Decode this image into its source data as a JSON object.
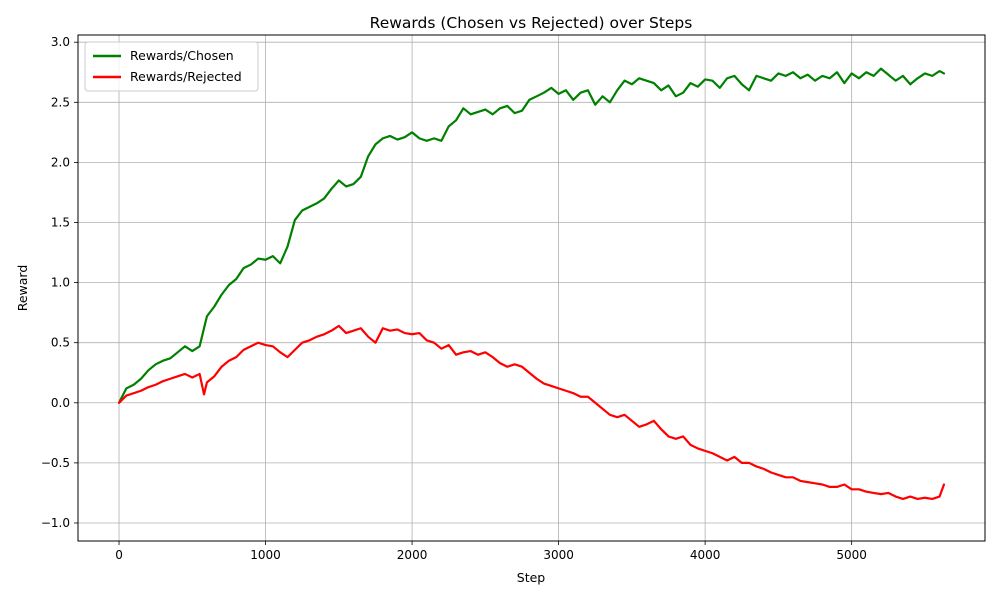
{
  "chart_data": {
    "type": "line",
    "title": "Rewards (Chosen vs Rejected) over Steps",
    "xlabel": "Step",
    "ylabel": "Reward",
    "xlim": [
      -280,
      5910
    ],
    "ylim": [
      -1.15,
      3.06
    ],
    "xticks": [
      0,
      1000,
      2000,
      3000,
      4000,
      5000
    ],
    "yticks": [
      -1.0,
      -0.5,
      0.0,
      0.5,
      1.0,
      1.5,
      2.0,
      2.5,
      3.0
    ],
    "xtick_labels": [
      "0",
      "1000",
      "2000",
      "3000",
      "4000",
      "5000"
    ],
    "ytick_labels": [
      "−1.0",
      "−0.5",
      "0.0",
      "0.5",
      "1.0",
      "1.5",
      "2.0",
      "2.5",
      "3.0"
    ],
    "grid": true,
    "legend_position": "top-left",
    "series": [
      {
        "name": "Rewards/Chosen",
        "color": "#008000",
        "x": [
          0,
          50,
          100,
          150,
          200,
          250,
          300,
          350,
          400,
          450,
          500,
          550,
          580,
          600,
          650,
          700,
          750,
          800,
          850,
          900,
          950,
          1000,
          1050,
          1100,
          1150,
          1200,
          1250,
          1300,
          1350,
          1400,
          1450,
          1500,
          1550,
          1600,
          1650,
          1700,
          1750,
          1800,
          1850,
          1900,
          1950,
          2000,
          2050,
          2100,
          2150,
          2200,
          2250,
          2300,
          2350,
          2400,
          2450,
          2500,
          2550,
          2600,
          2650,
          2700,
          2750,
          2800,
          2850,
          2900,
          2950,
          3000,
          3050,
          3100,
          3150,
          3200,
          3250,
          3300,
          3350,
          3400,
          3450,
          3500,
          3550,
          3600,
          3650,
          3700,
          3750,
          3800,
          3850,
          3900,
          3950,
          4000,
          4050,
          4100,
          4150,
          4200,
          4250,
          4300,
          4350,
          4400,
          4450,
          4500,
          4550,
          4600,
          4650,
          4700,
          4750,
          4800,
          4850,
          4900,
          4950,
          5000,
          5050,
          5100,
          5150,
          5200,
          5250,
          5300,
          5350,
          5400,
          5450,
          5500,
          5550,
          5600,
          5630
        ],
        "y": [
          0.0,
          0.12,
          0.15,
          0.2,
          0.27,
          0.32,
          0.35,
          0.37,
          0.42,
          0.47,
          0.43,
          0.47,
          0.62,
          0.72,
          0.8,
          0.9,
          0.98,
          1.03,
          1.12,
          1.15,
          1.2,
          1.19,
          1.22,
          1.16,
          1.3,
          1.52,
          1.6,
          1.63,
          1.66,
          1.7,
          1.78,
          1.85,
          1.8,
          1.82,
          1.88,
          2.05,
          2.15,
          2.2,
          2.22,
          2.19,
          2.21,
          2.25,
          2.2,
          2.18,
          2.2,
          2.18,
          2.3,
          2.35,
          2.45,
          2.4,
          2.42,
          2.44,
          2.4,
          2.45,
          2.47,
          2.41,
          2.43,
          2.52,
          2.55,
          2.58,
          2.62,
          2.57,
          2.6,
          2.52,
          2.58,
          2.6,
          2.48,
          2.55,
          2.5,
          2.6,
          2.68,
          2.65,
          2.7,
          2.68,
          2.66,
          2.6,
          2.64,
          2.55,
          2.58,
          2.66,
          2.63,
          2.69,
          2.68,
          2.62,
          2.7,
          2.72,
          2.65,
          2.6,
          2.72,
          2.7,
          2.68,
          2.74,
          2.72,
          2.75,
          2.7,
          2.73,
          2.68,
          2.72,
          2.7,
          2.75,
          2.66,
          2.74,
          2.7,
          2.75,
          2.72,
          2.78,
          2.73,
          2.68,
          2.72,
          2.65,
          2.7,
          2.74,
          2.72,
          2.76,
          2.74
        ]
      },
      {
        "name": "Rewards/Rejected",
        "color": "#ff0000",
        "x": [
          0,
          50,
          100,
          150,
          200,
          250,
          300,
          350,
          400,
          450,
          500,
          550,
          580,
          600,
          650,
          700,
          750,
          800,
          850,
          900,
          950,
          1000,
          1050,
          1100,
          1150,
          1200,
          1250,
          1300,
          1350,
          1400,
          1450,
          1500,
          1550,
          1600,
          1650,
          1700,
          1750,
          1800,
          1850,
          1900,
          1950,
          2000,
          2050,
          2100,
          2150,
          2200,
          2250,
          2300,
          2350,
          2400,
          2450,
          2500,
          2550,
          2600,
          2650,
          2700,
          2750,
          2800,
          2850,
          2900,
          2950,
          3000,
          3050,
          3100,
          3150,
          3200,
          3250,
          3300,
          3350,
          3400,
          3450,
          3500,
          3550,
          3600,
          3650,
          3700,
          3750,
          3800,
          3850,
          3900,
          3950,
          4000,
          4050,
          4100,
          4150,
          4200,
          4250,
          4300,
          4350,
          4400,
          4450,
          4500,
          4550,
          4600,
          4650,
          4700,
          4750,
          4800,
          4850,
          4900,
          4950,
          5000,
          5050,
          5100,
          5150,
          5200,
          5250,
          5300,
          5350,
          5400,
          5450,
          5500,
          5550,
          5600,
          5630
        ],
        "y": [
          0.0,
          0.06,
          0.08,
          0.1,
          0.13,
          0.15,
          0.18,
          0.2,
          0.22,
          0.24,
          0.21,
          0.24,
          0.07,
          0.17,
          0.22,
          0.3,
          0.35,
          0.38,
          0.44,
          0.47,
          0.5,
          0.48,
          0.47,
          0.42,
          0.38,
          0.44,
          0.5,
          0.52,
          0.55,
          0.57,
          0.6,
          0.64,
          0.58,
          0.6,
          0.62,
          0.55,
          0.5,
          0.62,
          0.6,
          0.61,
          0.58,
          0.57,
          0.58,
          0.52,
          0.5,
          0.45,
          0.48,
          0.4,
          0.42,
          0.43,
          0.4,
          0.42,
          0.38,
          0.33,
          0.3,
          0.32,
          0.3,
          0.25,
          0.2,
          0.16,
          0.14,
          0.12,
          0.1,
          0.08,
          0.05,
          0.05,
          0.0,
          -0.05,
          -0.1,
          -0.12,
          -0.1,
          -0.15,
          -0.2,
          -0.18,
          -0.15,
          -0.22,
          -0.28,
          -0.3,
          -0.28,
          -0.35,
          -0.38,
          -0.4,
          -0.42,
          -0.45,
          -0.48,
          -0.45,
          -0.5,
          -0.5,
          -0.53,
          -0.55,
          -0.58,
          -0.6,
          -0.62,
          -0.62,
          -0.65,
          -0.66,
          -0.67,
          -0.68,
          -0.7,
          -0.7,
          -0.68,
          -0.72,
          -0.72,
          -0.74,
          -0.75,
          -0.76,
          -0.75,
          -0.78,
          -0.8,
          -0.78,
          -0.8,
          -0.79,
          -0.8,
          -0.78,
          -0.68
        ]
      }
    ]
  }
}
